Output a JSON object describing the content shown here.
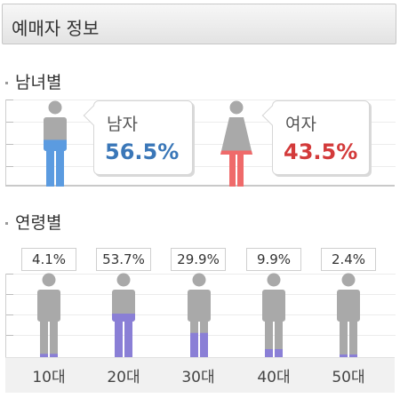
{
  "header": {
    "title": "예매자 정보"
  },
  "gender": {
    "title": "남녀별",
    "male": {
      "label": "남자",
      "percent_text": "56.5%",
      "value": 56.5,
      "color": "#3a77b8"
    },
    "female": {
      "label": "여자",
      "percent_text": "43.5%",
      "value": 43.5,
      "color": "#d33a3a"
    }
  },
  "age": {
    "title": "연령별",
    "groups": [
      {
        "label": "10대",
        "percent_text": "4.1%",
        "value": 4.1
      },
      {
        "label": "20대",
        "percent_text": "53.7%",
        "value": 53.7
      },
      {
        "label": "30대",
        "percent_text": "29.9%",
        "value": 29.9
      },
      {
        "label": "40대",
        "percent_text": "9.9%",
        "value": 9.9
      },
      {
        "label": "50대",
        "percent_text": "2.4%",
        "value": 2.4
      }
    ],
    "fill_color": "#8a7fd6"
  },
  "colors": {
    "figure_gray": "#a9a9a9",
    "male_fill": "#5b9be0",
    "female_fill": "#ef6a6a"
  }
}
